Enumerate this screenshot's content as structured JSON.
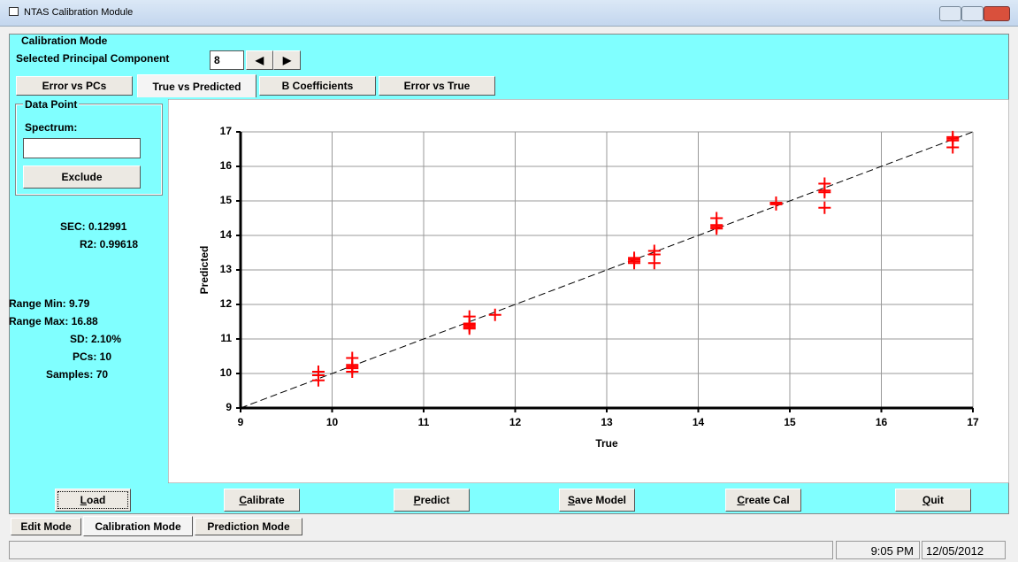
{
  "window": {
    "title": "NTAS Calibration Module"
  },
  "mode_group": {
    "title": "Calibration Mode",
    "pc_label": "Selected Principal Component",
    "pc_value": "8"
  },
  "tabs": [
    "Error vs PCs",
    "True vs Predicted",
    "B Coefficients",
    "Error vs True"
  ],
  "data_point": {
    "title": "Data Point",
    "spectrum_label": "Spectrum:",
    "exclude": "Exclude"
  },
  "stats": [
    "SEC: 0.12991",
    "R2: 0.99618",
    "Range Min: 9.79",
    "Range Max: 16.88",
    "SD: 2.10%",
    "PCs: 10",
    "Samples: 70"
  ],
  "buttons": [
    "Load",
    "Calibrate",
    "Predict",
    "Save Model",
    "Create Cal",
    "Quit"
  ],
  "mode_tabs": [
    "Edit Mode",
    "Calibration Mode",
    "Prediction Mode"
  ],
  "status": {
    "time": "9:05 PM",
    "date": "12/05/2012"
  },
  "chart_data": {
    "type": "scatter",
    "x_label": "True",
    "y_label": "Predicted",
    "color": "#ff0000",
    "grid": true,
    "x": [
      9.85,
      9.85,
      9.85,
      10.22,
      10.22,
      10.22,
      10.22,
      10.22,
      11.5,
      11.5,
      11.5,
      11.5,
      11.5,
      11.78,
      13.3,
      13.3,
      13.3,
      13.3,
      13.52,
      13.52,
      13.52,
      14.2,
      14.2,
      14.2,
      14.2,
      14.85,
      14.85,
      15.38,
      15.38,
      15.38,
      15.38,
      16.78,
      16.78,
      16.78,
      16.78
    ],
    "values": [
      10.05,
      9.95,
      9.8,
      10.45,
      10.25,
      10.2,
      10.15,
      10.05,
      11.65,
      11.45,
      11.4,
      11.35,
      11.3,
      11.7,
      13.35,
      13.3,
      13.25,
      13.2,
      13.55,
      13.45,
      13.2,
      14.5,
      14.3,
      14.25,
      14.2,
      14.95,
      14.9,
      15.5,
      15.3,
      15.25,
      14.8,
      16.85,
      16.8,
      16.75,
      16.55
    ],
    "xlim": [
      9,
      17
    ],
    "ylim": [
      9,
      17
    ],
    "xticks": [
      9,
      10,
      11,
      12,
      13,
      14,
      15,
      16,
      17
    ],
    "yticks": [
      9,
      10,
      11,
      12,
      13,
      14,
      15,
      16,
      17
    ]
  }
}
